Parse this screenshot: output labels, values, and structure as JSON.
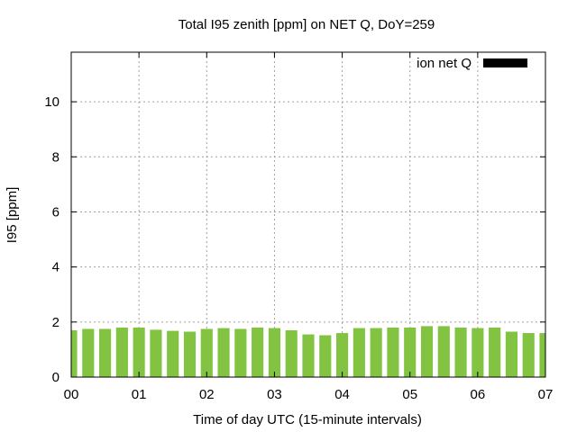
{
  "chart_data": {
    "type": "bar",
    "title": "Total I95 zenith [ppm] on NET Q, DoY=259",
    "xlabel": "Time of day UTC (15-minute intervals)",
    "ylabel": "I95 [ppm]",
    "ylim": [
      0,
      11.8
    ],
    "xlim": [
      0,
      7
    ],
    "y_ticks": [
      0,
      2,
      4,
      6,
      8,
      10
    ],
    "y_tick_labels": [
      "0",
      "2",
      "4",
      "6",
      "8",
      "10"
    ],
    "x_ticks": [
      0,
      1,
      2,
      3,
      4,
      5,
      6,
      7
    ],
    "x_tick_labels": [
      "00",
      "01",
      "02",
      "03",
      "04",
      "05",
      "06",
      "07"
    ],
    "grid": true,
    "legend_position": "top-right",
    "series": [
      {
        "name": "ion net Q",
        "color": "#82c341",
        "legend_swatch_color": "#000000",
        "x": [
          0,
          0.25,
          0.5,
          0.75,
          1,
          1.25,
          1.5,
          1.75,
          2,
          2.25,
          2.5,
          2.75,
          3,
          3.25,
          3.5,
          3.75,
          4,
          4.25,
          4.5,
          4.75,
          5,
          5.25,
          5.5,
          5.75,
          6,
          6.25,
          6.5,
          6.75,
          7
        ],
        "values": [
          1.7,
          1.75,
          1.75,
          1.8,
          1.8,
          1.72,
          1.68,
          1.65,
          1.75,
          1.78,
          1.75,
          1.8,
          1.78,
          1.7,
          1.55,
          1.52,
          1.6,
          1.78,
          1.78,
          1.8,
          1.8,
          1.85,
          1.85,
          1.8,
          1.78,
          1.8,
          1.65,
          1.6,
          1.6
        ]
      }
    ]
  }
}
